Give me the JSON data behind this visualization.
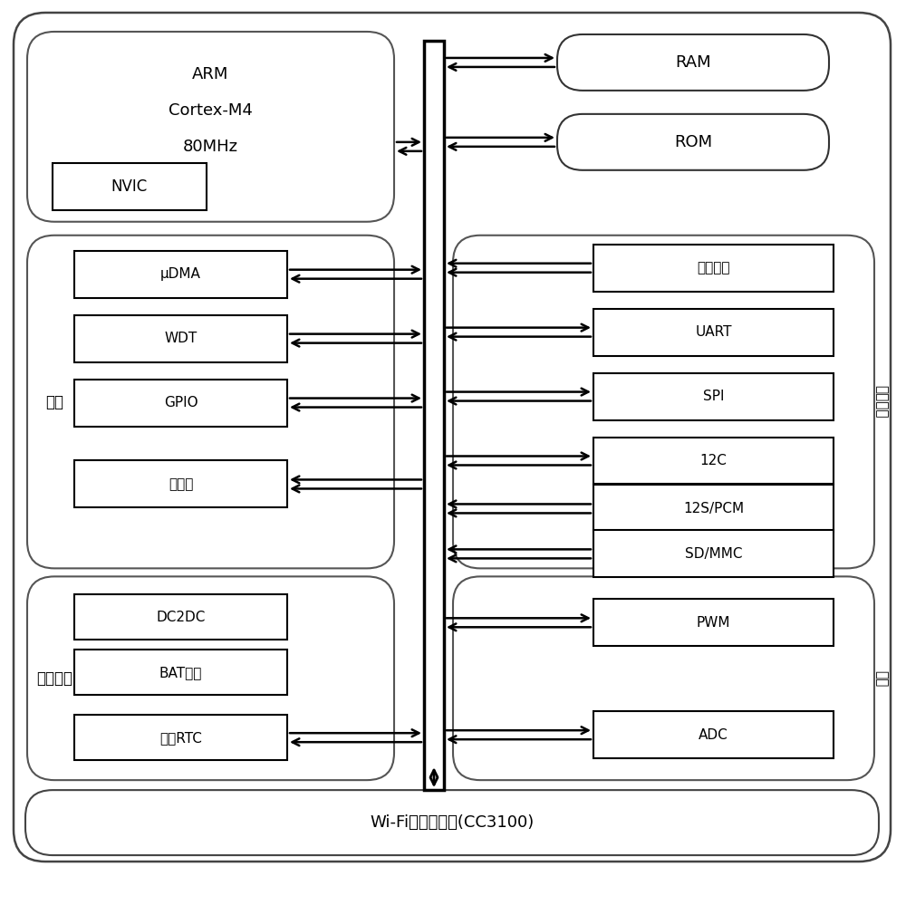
{
  "fig_width": 10.0,
  "fig_height": 9.99,
  "bg_color": "#ffffff",
  "text_color": "#000000",
  "title_bottom": "Wi-Fi网络处理器(CC3100)",
  "arm_lines": [
    "ARM",
    "Cortex-M4",
    "80MHz"
  ],
  "arm_sub": "NVIC",
  "system_label": "系统",
  "system_items": [
    "μDMA",
    "WDT",
    "GPIO",
    "振荡器"
  ],
  "power_label": "电源管理",
  "power_items": [
    "DC2DC",
    "BAT监控",
    "休眠RTC"
  ],
  "peripheral_label": "外设接口",
  "peripheral_items": [
    "快速并口",
    "UART",
    "SPI",
    "12C",
    "12S/PCM",
    "SD/MMC"
  ],
  "analog_label": "模拟",
  "analog_items": [
    "PWM",
    "ADC"
  ],
  "ram_label": "RAM",
  "rom_label": "ROM"
}
